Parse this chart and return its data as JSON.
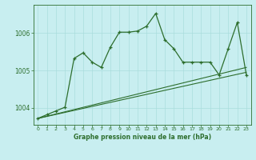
{
  "bg_color": "#c8eef0",
  "grid_color": "#aadddd",
  "line_color": "#2d6e2d",
  "xlim": [
    -0.5,
    23.5
  ],
  "ylim": [
    1003.55,
    1006.75
  ],
  "yticks": [
    1004,
    1005,
    1006
  ],
  "xticks": [
    0,
    1,
    2,
    3,
    4,
    5,
    6,
    7,
    8,
    9,
    10,
    11,
    12,
    13,
    14,
    15,
    16,
    17,
    18,
    19,
    20,
    21,
    22,
    23
  ],
  "main_x": [
    0,
    1,
    2,
    3,
    4,
    5,
    6,
    7,
    8,
    9,
    10,
    11,
    12,
    13,
    14,
    15,
    16,
    17,
    18,
    19,
    20,
    21,
    22,
    23
  ],
  "main_y": [
    1003.72,
    1003.82,
    1003.92,
    1004.02,
    1005.32,
    1005.47,
    1005.22,
    1005.08,
    1005.62,
    1006.02,
    1006.02,
    1006.05,
    1006.18,
    1006.52,
    1005.82,
    1005.58,
    1005.22,
    1005.22,
    1005.22,
    1005.22,
    1004.88,
    1005.58,
    1006.28,
    1004.88
  ],
  "line2_x": [
    0,
    23
  ],
  "line2_y": [
    1003.72,
    1004.95
  ],
  "line3_x": [
    0,
    23
  ],
  "line3_y": [
    1003.72,
    1005.08
  ],
  "xlabel": "Graphe pression niveau de la mer (hPa)"
}
